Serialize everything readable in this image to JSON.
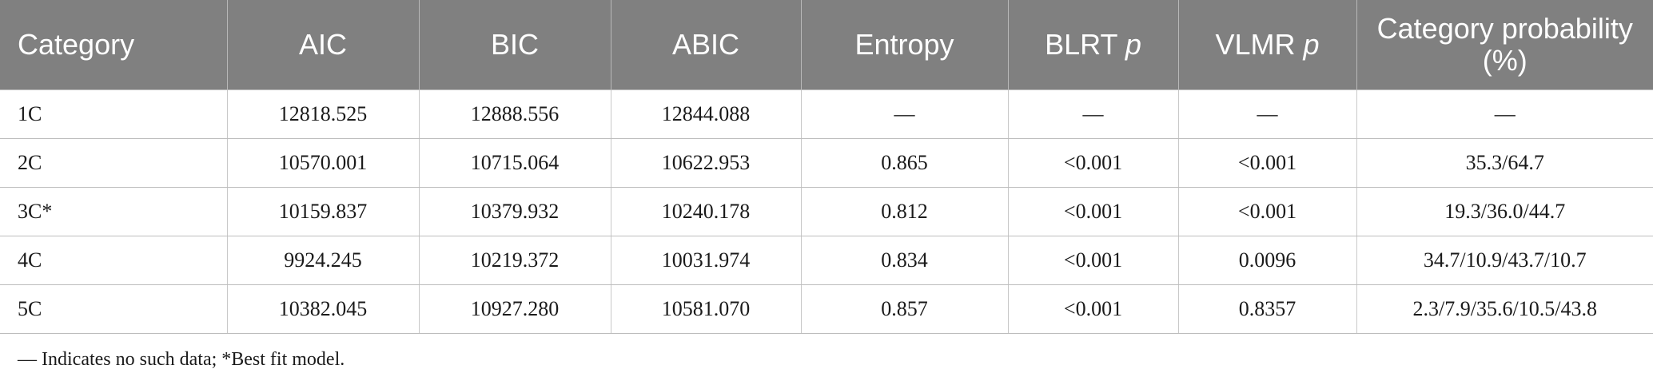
{
  "table": {
    "headers": [
      {
        "text": "Category",
        "italic_suffix": ""
      },
      {
        "text": "AIC",
        "italic_suffix": ""
      },
      {
        "text": "BIC",
        "italic_suffix": ""
      },
      {
        "text": "ABIC",
        "italic_suffix": ""
      },
      {
        "text": "Entropy",
        "italic_suffix": ""
      },
      {
        "text": "BLRT ",
        "italic_suffix": "p"
      },
      {
        "text": "VLMR ",
        "italic_suffix": "p"
      },
      {
        "text": "Category probability (%)",
        "italic_suffix": ""
      }
    ],
    "rows": [
      [
        "1C",
        "12818.525",
        "12888.556",
        "12844.088",
        "—",
        "—",
        "—",
        "—"
      ],
      [
        "2C",
        "10570.001",
        "10715.064",
        "10622.953",
        "0.865",
        "<0.001",
        "<0.001",
        "35.3/64.7"
      ],
      [
        "3C*",
        "10159.837",
        "10379.932",
        "10240.178",
        "0.812",
        "<0.001",
        "<0.001",
        "19.3/36.0/44.7"
      ],
      [
        "4C",
        "9924.245",
        "10219.372",
        "10031.974",
        "0.834",
        "<0.001",
        "0.0096",
        "34.7/10.9/43.7/10.7"
      ],
      [
        "5C",
        "10382.045",
        "10927.280",
        "10581.070",
        "0.857",
        "<0.001",
        "0.8357",
        "2.3/7.9/35.6/10.5/43.8"
      ]
    ]
  },
  "footnote": "— Indicates no such data; *Best fit model."
}
